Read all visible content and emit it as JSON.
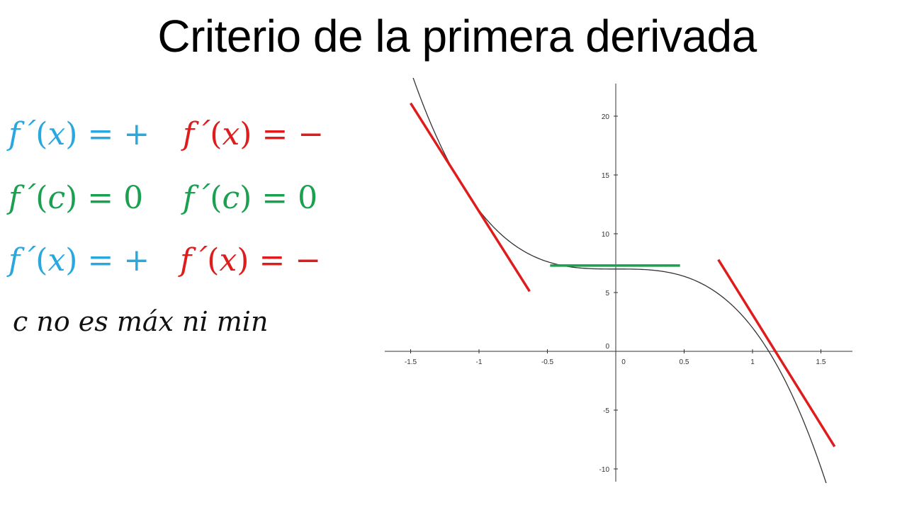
{
  "title": "Criterio de la primera derivada",
  "equations": {
    "row1_left": {
      "fn": "f´",
      "arg": "x",
      "rhs": "+",
      "color": "#29a8e0"
    },
    "row1_right": {
      "fn": "f´",
      "arg": "x",
      "rhs": "−",
      "color": "#e01b1b"
    },
    "row2_left": {
      "fn": "f´",
      "arg": "c",
      "rhs": "0",
      "color": "#1aa050"
    },
    "row2_right": {
      "fn": "f´",
      "arg": "c",
      "rhs": "0",
      "color": "#1aa050"
    },
    "row3_left": {
      "fn": "f´",
      "arg": "x",
      "rhs": "+",
      "color": "#29a8e0"
    },
    "row3_right": {
      "fn": "f´",
      "arg": "x",
      "rhs": "−",
      "color": "#e01b1b"
    }
  },
  "note": "c no es máx ni min",
  "chart_data": {
    "type": "line",
    "title": "",
    "xlabel": "",
    "ylabel": "",
    "xlim": [
      -1.6,
      1.7
    ],
    "ylim": [
      -11,
      23
    ],
    "x_ticks": [
      "-1.5",
      "-1",
      "-0.5",
      "0",
      "0.5",
      "1",
      "1.5"
    ],
    "y_ticks": [
      "-10",
      "-5",
      "0",
      "5",
      "10",
      "15",
      "20"
    ],
    "grid": false,
    "series": [
      {
        "function": "-5x^3 + 7",
        "x_range": [
          -1.57,
          1.62
        ],
        "color": "#333333"
      }
    ],
    "tangent_lines": [
      {
        "x": [
          -1.5,
          -0.63
        ],
        "y": [
          21.1,
          5.1
        ],
        "color": "#e01b1b"
      },
      {
        "x": [
          -0.48,
          0.47
        ],
        "y": [
          7.3,
          7.3
        ],
        "color": "#1aa050"
      },
      {
        "x": [
          0.75,
          1.6
        ],
        "y": [
          7.8,
          -8.1
        ],
        "color": "#e01b1b"
      }
    ]
  }
}
